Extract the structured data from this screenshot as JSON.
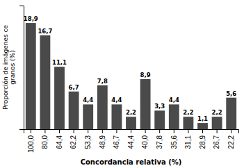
{
  "chart_data": {
    "type": "bar",
    "categories": [
      "100,0",
      "80,0",
      "64,4",
      "62,2",
      "53,3",
      "48,9",
      "46,7",
      "44,4",
      "40,0",
      "37,8",
      "35,6",
      "31,1",
      "28,9",
      "26,7",
      "22,2"
    ],
    "values": [
      18.9,
      16.7,
      11.1,
      6.7,
      4.4,
      7.8,
      4.4,
      2.2,
      8.9,
      3.3,
      4.4,
      2.2,
      1.1,
      2.2,
      5.6
    ],
    "value_labels": [
      "18,9",
      "16,7",
      "11,1",
      "6,7",
      "4,4",
      "7,8",
      "4,4",
      "2,2",
      "8,9",
      "3,3",
      "4,4",
      "2,2",
      "1,1",
      "2,2",
      "5,6"
    ],
    "color": "#4a4a4a",
    "xlabel": "Concordancia relativa (%)",
    "ylabel": "Proporción de imágenes ce\ngranos (%)",
    "ylim": [
      0,
      22
    ],
    "data_labels": true,
    "tick_labels": "x",
    "grid": false
  }
}
